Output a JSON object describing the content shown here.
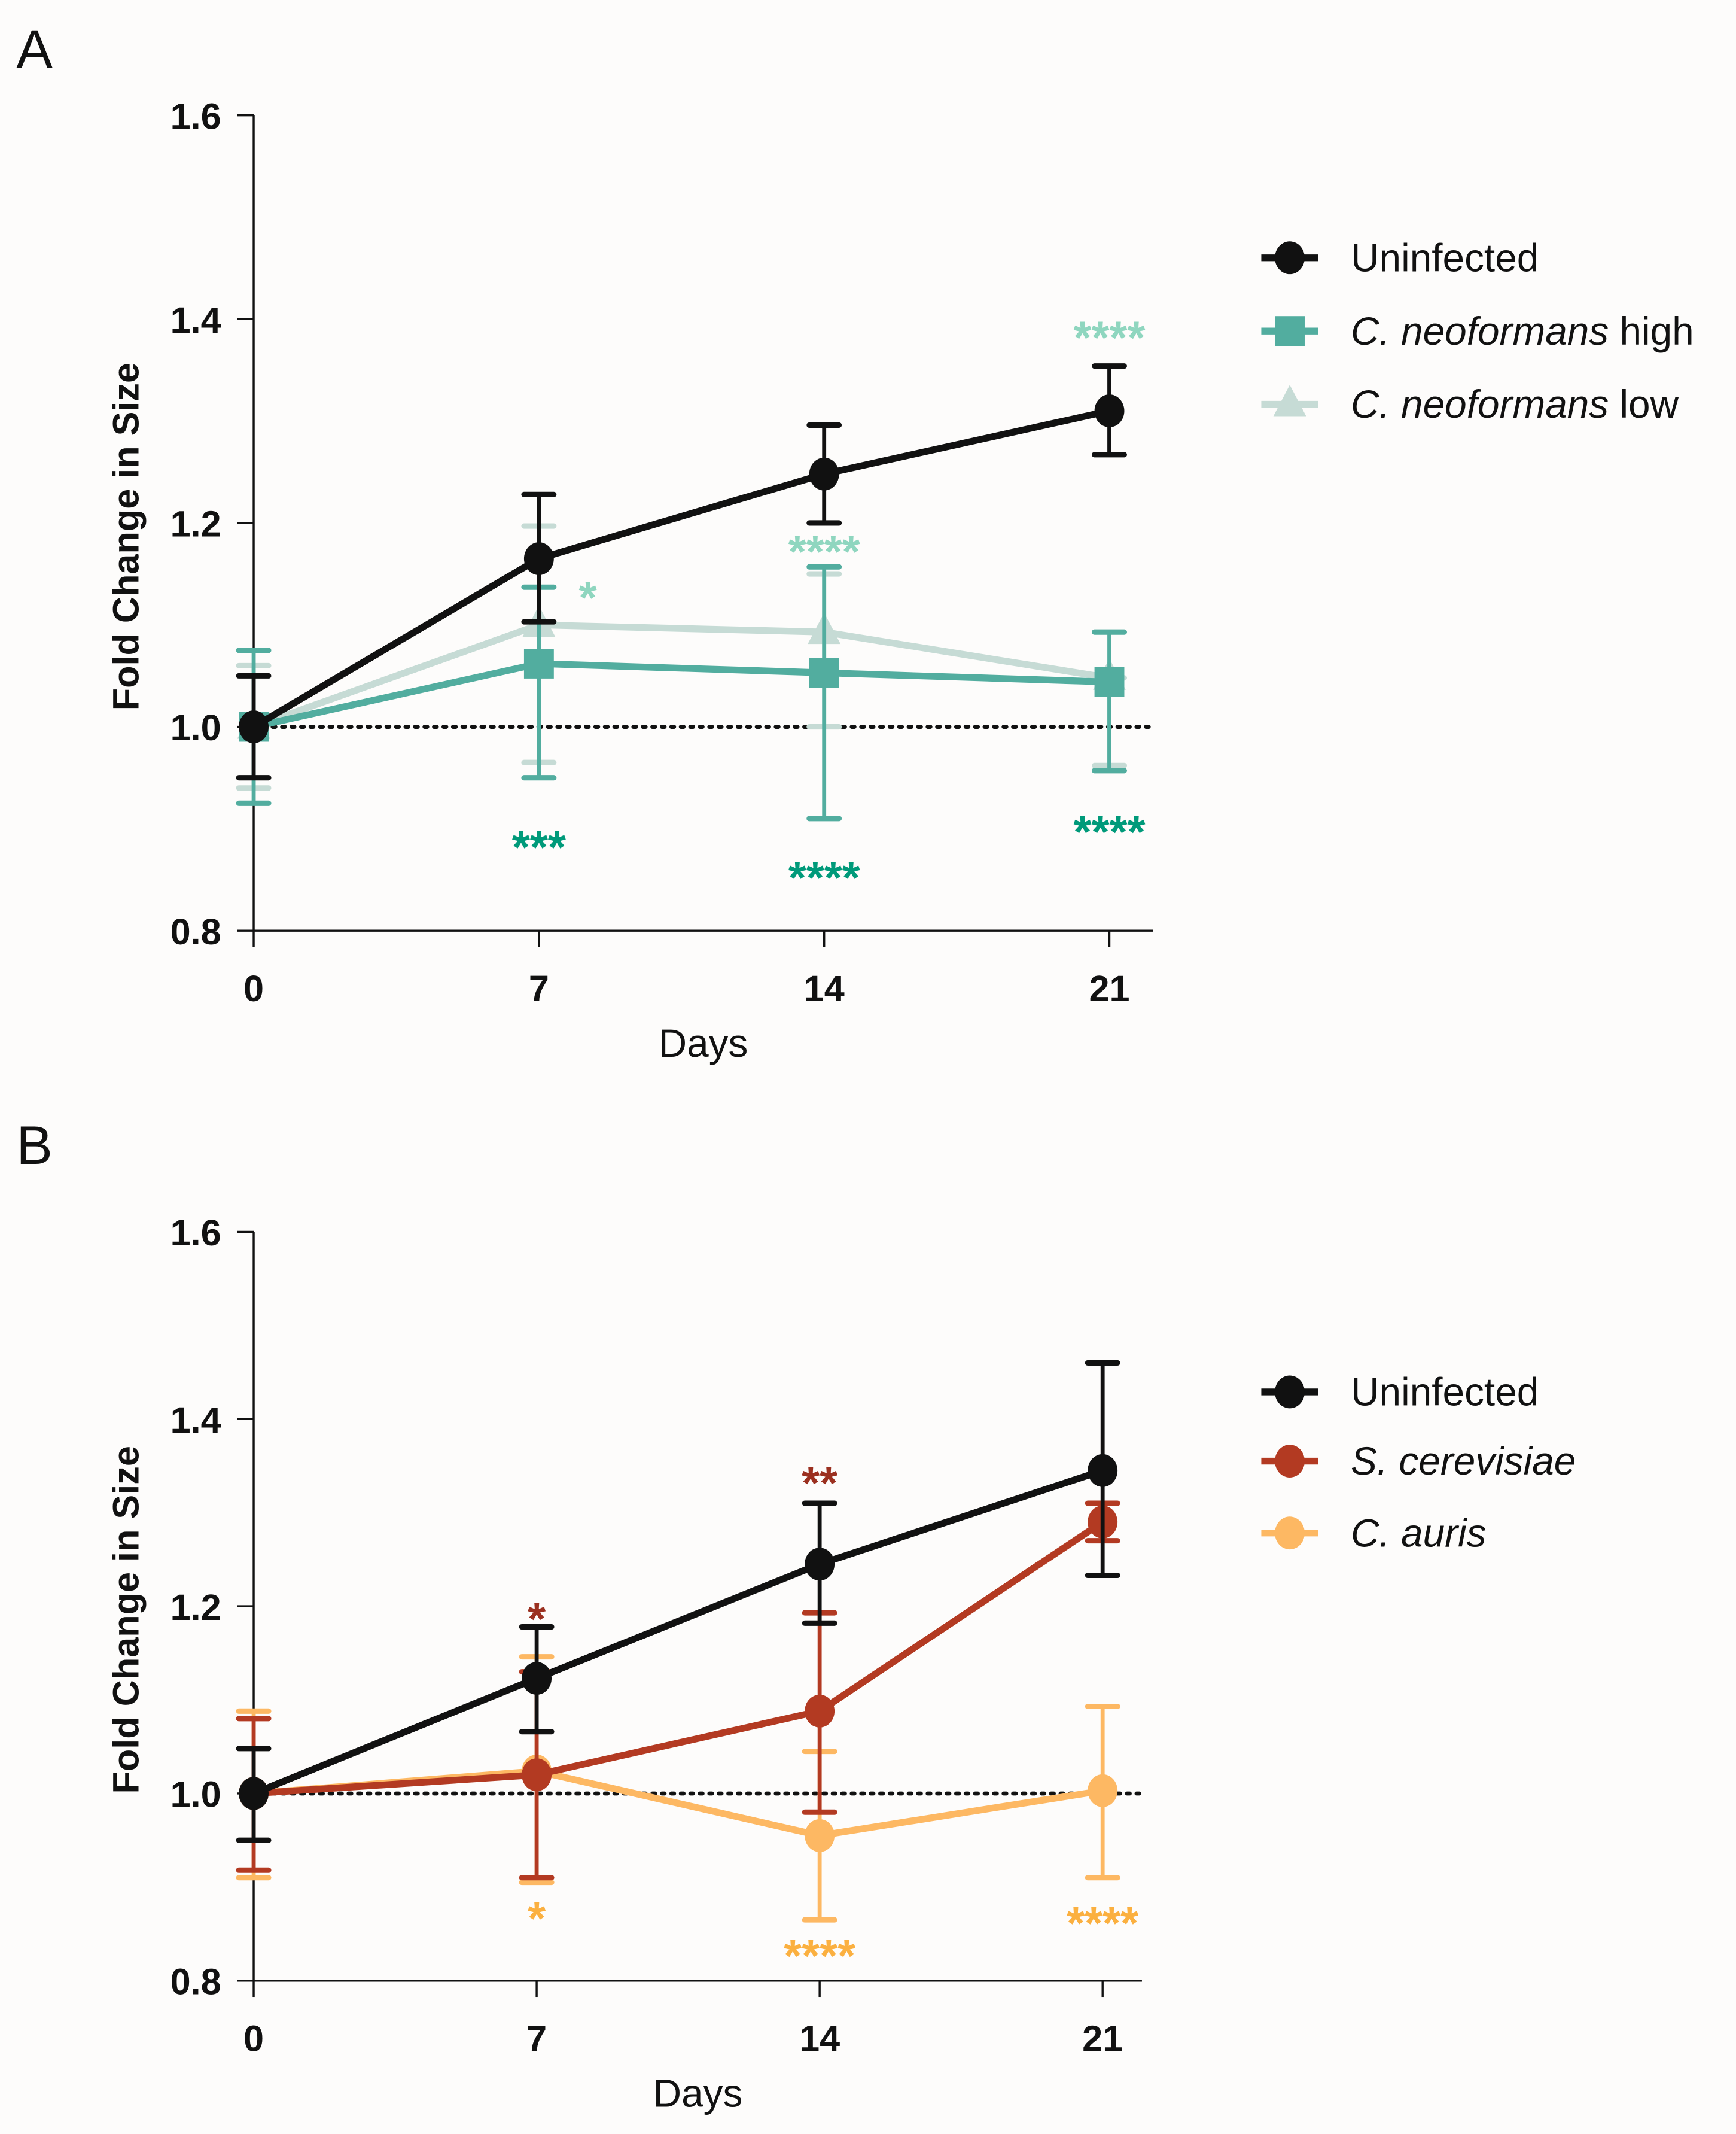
{
  "chart_data": [
    {
      "panel_label": "A",
      "type": "line",
      "xlabel": "Days",
      "ylabel": "Fold Change in Size",
      "x": [
        0,
        7,
        14,
        21
      ],
      "xticks": [
        "0",
        "7",
        "14",
        "21"
      ],
      "yticks": [
        "0.8",
        "1.0",
        "1.2",
        "1.4",
        "1.6"
      ],
      "ylim": [
        0.8,
        1.6
      ],
      "reference_line": 1.0,
      "series": [
        {
          "name": "Uninfected",
          "italic": "",
          "plain": "Uninfected",
          "marker": "circle",
          "color": "#111111",
          "values": [
            1.0,
            1.165,
            1.248,
            1.31
          ],
          "err_low": [
            0.95,
            1.103,
            1.2,
            1.267
          ],
          "err_high": [
            1.05,
            1.228,
            1.296,
            1.354
          ]
        },
        {
          "name": "C. neoformans high",
          "italic": "C. neoformans",
          "plain": " high",
          "marker": "square",
          "color": "#52ad9f",
          "values": [
            1.0,
            1.062,
            1.053,
            1.044
          ],
          "err_low": [
            0.925,
            0.95,
            0.91,
            0.957
          ],
          "err_high": [
            1.075,
            1.137,
            1.157,
            1.093
          ]
        },
        {
          "name": "C. neoformans low",
          "italic": "C. neoformans",
          "plain": " low",
          "marker": "triangle",
          "color": "#c6dbd5",
          "values": [
            1.0,
            1.1,
            1.093,
            1.048
          ],
          "err_low": [
            0.94,
            0.965,
            1.0,
            0.962
          ],
          "err_high": [
            1.06,
            1.197,
            1.15,
            1.048
          ]
        }
      ],
      "annotations": [
        {
          "text": "****",
          "x": 21,
          "y": 1.385,
          "color": "#8fd6bf"
        },
        {
          "text": "*",
          "x": 8.2,
          "y": 1.13,
          "color": "#8fd6bf"
        },
        {
          "text": "****",
          "x": 14,
          "y": 1.175,
          "color": "#8fd6bf"
        },
        {
          "text": "***",
          "x": 7,
          "y": 0.885,
          "color": "#009a7a"
        },
        {
          "text": "****",
          "x": 14,
          "y": 0.855,
          "color": "#009a7a"
        },
        {
          "text": "****",
          "x": 21,
          "y": 0.9,
          "color": "#009a7a"
        }
      ],
      "legend_position": "right"
    },
    {
      "panel_label": "B",
      "type": "line",
      "xlabel": "Days",
      "ylabel": "Fold Change in Size",
      "x": [
        0,
        7,
        14,
        21
      ],
      "xticks": [
        "0",
        "7",
        "14",
        "21"
      ],
      "yticks": [
        "0.8",
        "1.0",
        "1.2",
        "1.4",
        "1.6"
      ],
      "ylim": [
        0.8,
        1.6
      ],
      "reference_line": 1.0,
      "series": [
        {
          "name": "Uninfected",
          "italic": "",
          "plain": "Uninfected",
          "marker": "circle",
          "color": "#111111",
          "values": [
            1.0,
            1.123,
            1.245,
            1.345
          ],
          "err_low": [
            0.95,
            1.066,
            1.182,
            1.233
          ],
          "err_high": [
            1.048,
            1.178,
            1.31,
            1.46
          ]
        },
        {
          "name": "S. cerevisiae",
          "italic": "S. cerevisiae",
          "plain": "",
          "marker": "circle",
          "color": "#b33a22",
          "values": [
            1.0,
            1.02,
            1.088,
            1.29
          ],
          "err_low": [
            0.918,
            0.91,
            0.98,
            1.27
          ],
          "err_high": [
            1.08,
            1.13,
            1.193,
            1.31
          ]
        },
        {
          "name": "C. auris",
          "italic": "C. auris",
          "plain": "",
          "marker": "circle",
          "color": "#fdb863",
          "values": [
            1.0,
            1.024,
            0.955,
            1.003
          ],
          "err_low": [
            0.91,
            0.905,
            0.865,
            0.91
          ],
          "err_high": [
            1.088,
            1.146,
            1.045,
            1.093
          ]
        }
      ],
      "annotations": [
        {
          "text": "*",
          "x": 7,
          "y": 1.19,
          "color": "#9b3020"
        },
        {
          "text": "**",
          "x": 14,
          "y": 1.335,
          "color": "#9b3020"
        },
        {
          "text": "*",
          "x": 7,
          "y": 0.87,
          "color": "#fbb040"
        },
        {
          "text": "****",
          "x": 14,
          "y": 0.83,
          "color": "#fbb040"
        },
        {
          "text": "****",
          "x": 21,
          "y": 0.865,
          "color": "#fbb040"
        }
      ],
      "legend_position": "right"
    }
  ]
}
